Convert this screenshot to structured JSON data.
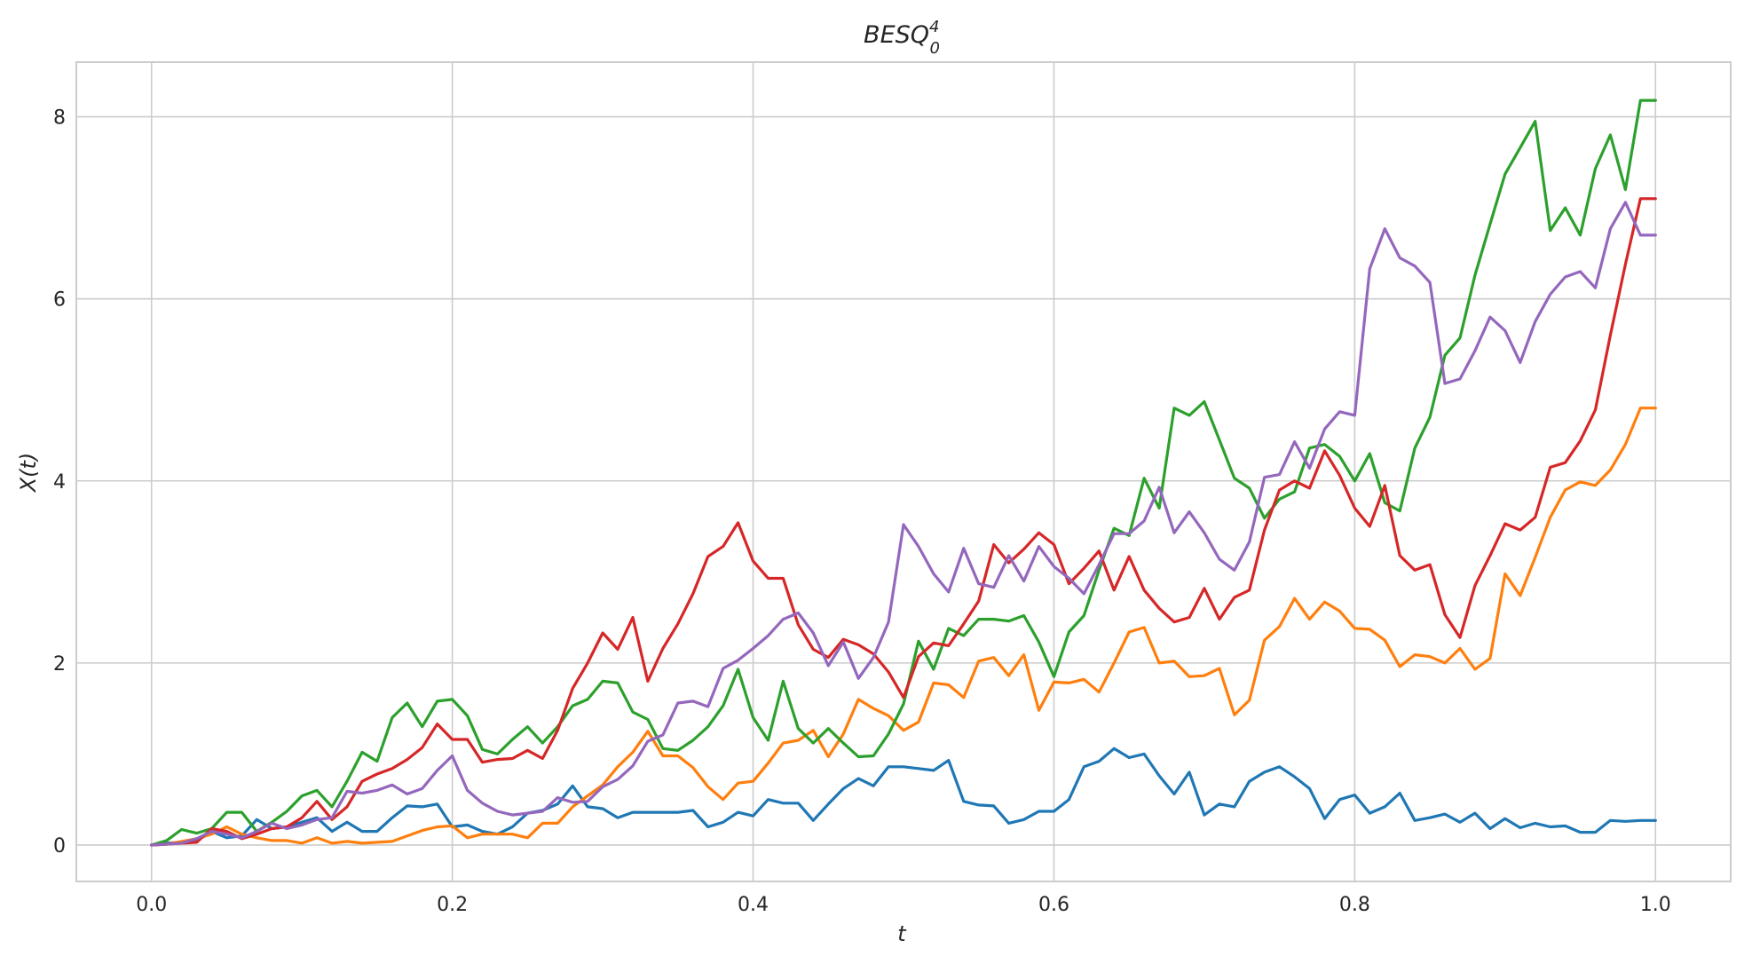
{
  "chart_data": {
    "type": "line",
    "title": "BESQ",
    "title_subscript": "0",
    "title_superscript": "4",
    "xlabel": "t",
    "ylabel": "X(t)",
    "xlim": [
      -0.05,
      1.05
    ],
    "ylim": [
      -0.4,
      8.6
    ],
    "xticks": [
      0.0,
      0.2,
      0.4,
      0.6,
      0.8,
      1.0
    ],
    "xtick_labels": [
      "0.0",
      "0.2",
      "0.4",
      "0.6",
      "0.8",
      "1.0"
    ],
    "yticks": [
      0,
      2,
      4,
      6,
      8
    ],
    "ytick_labels": [
      "0",
      "2",
      "4",
      "6",
      "8"
    ],
    "grid": true,
    "legend": "none",
    "x": [
      0.0,
      0.01,
      0.02,
      0.03,
      0.04,
      0.05,
      0.06,
      0.07,
      0.08,
      0.09,
      0.1,
      0.11,
      0.12,
      0.13,
      0.14,
      0.15,
      0.16,
      0.17,
      0.18,
      0.19,
      0.2,
      0.21,
      0.22,
      0.23,
      0.24,
      0.25,
      0.26,
      0.27,
      0.28,
      0.29,
      0.3,
      0.31,
      0.32,
      0.33,
      0.34,
      0.35,
      0.36,
      0.37,
      0.38,
      0.39,
      0.4,
      0.41,
      0.42,
      0.43,
      0.44,
      0.45,
      0.46,
      0.47,
      0.48,
      0.49,
      0.5,
      0.51,
      0.52,
      0.53,
      0.54,
      0.55,
      0.56,
      0.57,
      0.58,
      0.59,
      0.6,
      0.61,
      0.62,
      0.63,
      0.64,
      0.65,
      0.66,
      0.67,
      0.68,
      0.69,
      0.7,
      0.71,
      0.72,
      0.73,
      0.74,
      0.75,
      0.76,
      0.77,
      0.78,
      0.79,
      0.8,
      0.81,
      0.82,
      0.83,
      0.84,
      0.85,
      0.86,
      0.87,
      0.88,
      0.89,
      0.9,
      0.91,
      0.92,
      0.93,
      0.94,
      0.95,
      0.96,
      0.97,
      0.98,
      0.99,
      1.0
    ],
    "series": [
      {
        "color": "#1f77b4",
        "values": [
          0.0,
          0.02,
          0.03,
          0.05,
          0.15,
          0.08,
          0.1,
          0.28,
          0.18,
          0.2,
          0.25,
          0.3,
          0.15,
          0.25,
          0.15,
          0.15,
          0.3,
          0.43,
          0.42,
          0.45,
          0.2,
          0.22,
          0.15,
          0.12,
          0.2,
          0.35,
          0.38,
          0.45,
          0.65,
          0.42,
          0.4,
          0.3,
          0.36,
          0.36,
          0.36,
          0.36,
          0.38,
          0.2,
          0.25,
          0.36,
          0.32,
          0.5,
          0.46,
          0.46,
          0.27,
          0.45,
          0.62,
          0.73,
          0.65,
          0.86,
          0.86,
          0.84,
          0.82,
          0.93,
          0.48,
          0.44,
          0.43,
          0.24,
          0.28,
          0.37,
          0.37,
          0.5,
          0.86,
          0.92,
          1.06,
          0.96,
          1.0,
          0.76,
          0.56,
          0.8,
          0.33,
          0.45,
          0.42,
          0.7,
          0.8,
          0.86,
          0.75,
          0.62,
          0.29,
          0.5,
          0.55,
          0.35,
          0.42,
          0.57,
          0.27,
          0.3,
          0.34,
          0.25,
          0.35,
          0.18,
          0.29,
          0.19,
          0.24,
          0.2,
          0.21,
          0.14,
          0.14,
          0.27,
          0.26,
          0.27,
          0.27
        ]
      },
      {
        "color": "#ff7f0e",
        "values": [
          0.0,
          0.01,
          0.04,
          0.07,
          0.12,
          0.2,
          0.12,
          0.08,
          0.05,
          0.05,
          0.02,
          0.08,
          0.02,
          0.04,
          0.02,
          0.03,
          0.04,
          0.1,
          0.16,
          0.2,
          0.21,
          0.08,
          0.12,
          0.12,
          0.12,
          0.08,
          0.24,
          0.24,
          0.42,
          0.54,
          0.66,
          0.86,
          1.02,
          1.25,
          0.98,
          0.98,
          0.85,
          0.64,
          0.5,
          0.68,
          0.7,
          0.9,
          1.12,
          1.15,
          1.26,
          0.97,
          1.22,
          1.6,
          1.5,
          1.42,
          1.26,
          1.35,
          1.78,
          1.76,
          1.62,
          2.02,
          2.06,
          1.86,
          2.09,
          1.48,
          1.79,
          1.78,
          1.82,
          1.68,
          2.0,
          2.34,
          2.39,
          2.0,
          2.02,
          1.85,
          1.86,
          1.94,
          1.43,
          1.59,
          2.25,
          2.4,
          2.71,
          2.48,
          2.67,
          2.57,
          2.38,
          2.37,
          2.25,
          1.96,
          2.09,
          2.07,
          2.0,
          2.16,
          1.93,
          2.05,
          2.98,
          2.74,
          3.16,
          3.6,
          3.9,
          3.99,
          3.95,
          4.12,
          4.4,
          4.8,
          4.8
        ]
      },
      {
        "color": "#2ca02c",
        "values": [
          0.0,
          0.05,
          0.17,
          0.13,
          0.18,
          0.36,
          0.36,
          0.15,
          0.25,
          0.37,
          0.54,
          0.6,
          0.42,
          0.7,
          1.02,
          0.92,
          1.4,
          1.56,
          1.3,
          1.58,
          1.6,
          1.42,
          1.05,
          1.0,
          1.16,
          1.3,
          1.12,
          1.3,
          1.53,
          1.6,
          1.8,
          1.78,
          1.46,
          1.38,
          1.06,
          1.04,
          1.15,
          1.3,
          1.53,
          1.93,
          1.4,
          1.15,
          1.8,
          1.28,
          1.12,
          1.28,
          1.12,
          0.97,
          0.98,
          1.22,
          1.55,
          2.24,
          1.93,
          2.38,
          2.3,
          2.48,
          2.48,
          2.46,
          2.52,
          2.23,
          1.85,
          2.34,
          2.52,
          3.02,
          3.48,
          3.4,
          4.03,
          3.7,
          4.8,
          4.72,
          4.87,
          4.45,
          4.03,
          3.92,
          3.59,
          3.8,
          3.88,
          4.36,
          4.4,
          4.27,
          4.0,
          4.3,
          3.76,
          3.67,
          4.36,
          4.7,
          5.38,
          5.57,
          6.26,
          6.82,
          7.37,
          7.66,
          7.95,
          6.75,
          7.0,
          6.7,
          7.43,
          7.8,
          7.2,
          8.18,
          8.18
        ]
      },
      {
        "color": "#d62728",
        "values": [
          0.0,
          0.01,
          0.02,
          0.03,
          0.18,
          0.15,
          0.07,
          0.12,
          0.18,
          0.2,
          0.3,
          0.48,
          0.28,
          0.42,
          0.7,
          0.78,
          0.84,
          0.94,
          1.07,
          1.33,
          1.16,
          1.16,
          0.91,
          0.94,
          0.95,
          1.04,
          0.95,
          1.26,
          1.72,
          2.0,
          2.33,
          2.15,
          2.5,
          1.8,
          2.16,
          2.43,
          2.76,
          3.17,
          3.28,
          3.54,
          3.12,
          2.93,
          2.93,
          2.42,
          2.15,
          2.06,
          2.26,
          2.2,
          2.1,
          1.9,
          1.62,
          2.07,
          2.22,
          2.19,
          2.43,
          2.68,
          3.3,
          3.1,
          3.25,
          3.43,
          3.3,
          2.87,
          3.04,
          3.23,
          2.8,
          3.17,
          2.8,
          2.6,
          2.45,
          2.5,
          2.82,
          2.48,
          2.72,
          2.8,
          3.46,
          3.9,
          4.0,
          3.92,
          4.33,
          4.06,
          3.7,
          3.5,
          3.95,
          3.18,
          3.02,
          3.08,
          2.53,
          2.28,
          2.85,
          3.18,
          3.53,
          3.46,
          3.6,
          4.15,
          4.2,
          4.44,
          4.78,
          5.6,
          6.38,
          7.1,
          7.1
        ]
      },
      {
        "color": "#9467bd",
        "values": [
          0.0,
          0.01,
          0.02,
          0.07,
          0.15,
          0.12,
          0.08,
          0.15,
          0.24,
          0.18,
          0.22,
          0.28,
          0.3,
          0.59,
          0.57,
          0.6,
          0.66,
          0.56,
          0.62,
          0.82,
          0.98,
          0.6,
          0.46,
          0.37,
          0.33,
          0.35,
          0.37,
          0.52,
          0.47,
          0.48,
          0.64,
          0.72,
          0.87,
          1.14,
          1.21,
          1.56,
          1.58,
          1.52,
          1.94,
          2.03,
          2.16,
          2.3,
          2.48,
          2.55,
          2.33,
          1.97,
          2.23,
          1.83,
          2.06,
          2.45,
          3.52,
          3.28,
          2.98,
          2.78,
          3.26,
          2.87,
          2.83,
          3.18,
          2.9,
          3.28,
          3.06,
          2.93,
          2.76,
          3.08,
          3.42,
          3.42,
          3.56,
          3.93,
          3.43,
          3.66,
          3.43,
          3.14,
          3.02,
          3.33,
          4.04,
          4.07,
          4.43,
          4.14,
          4.57,
          4.76,
          4.72,
          6.33,
          6.77,
          6.45,
          6.36,
          6.18,
          5.07,
          5.12,
          5.43,
          5.8,
          5.65,
          5.3,
          5.75,
          6.05,
          6.24,
          6.3,
          6.12,
          6.77,
          7.06,
          6.7,
          6.7
        ]
      }
    ]
  }
}
